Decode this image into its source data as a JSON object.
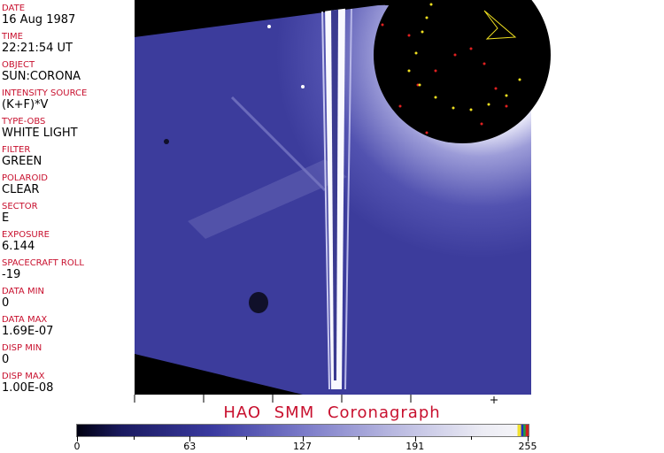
{
  "header_fields": [
    {
      "label": "DATE",
      "value": "16 Aug 1987"
    },
    {
      "label": "TIME",
      "value": "22:21:54 UT"
    },
    {
      "label": "OBJECT",
      "value": "SUN:CORONA"
    },
    {
      "label": "INTENSITY SOURCE",
      "value": "(K+F)*V"
    },
    {
      "label": "TYPE-OBS",
      "value": "WHITE LIGHT"
    },
    {
      "label": "FILTER",
      "value": "GREEN"
    },
    {
      "label": "POLAROID",
      "value": "CLEAR"
    },
    {
      "label": "SECTOR",
      "value": "E"
    },
    {
      "label": "EXPOSURE",
      "value": "6.144"
    },
    {
      "label": "SPACECRAFT ROLL",
      "value": "-19"
    },
    {
      "label": "DATA MIN",
      "value": "0"
    },
    {
      "label": "DATA MAX",
      "value": "1.69E-07"
    },
    {
      "label": "DISP MIN",
      "value": "0"
    },
    {
      "label": "DISP MAX",
      "value": "1.00E-08"
    }
  ],
  "title": "HAO  SMM Coronagraph",
  "colorbar": {
    "ticks": [
      "0",
      "63",
      "127",
      "191",
      "255"
    ],
    "colors": {
      "low": "#000010",
      "mid": "#7a7ac8",
      "high": "#f4f4f8"
    }
  },
  "colors": {
    "label": "#c8102e",
    "image_blue": "#3c3c9c"
  }
}
